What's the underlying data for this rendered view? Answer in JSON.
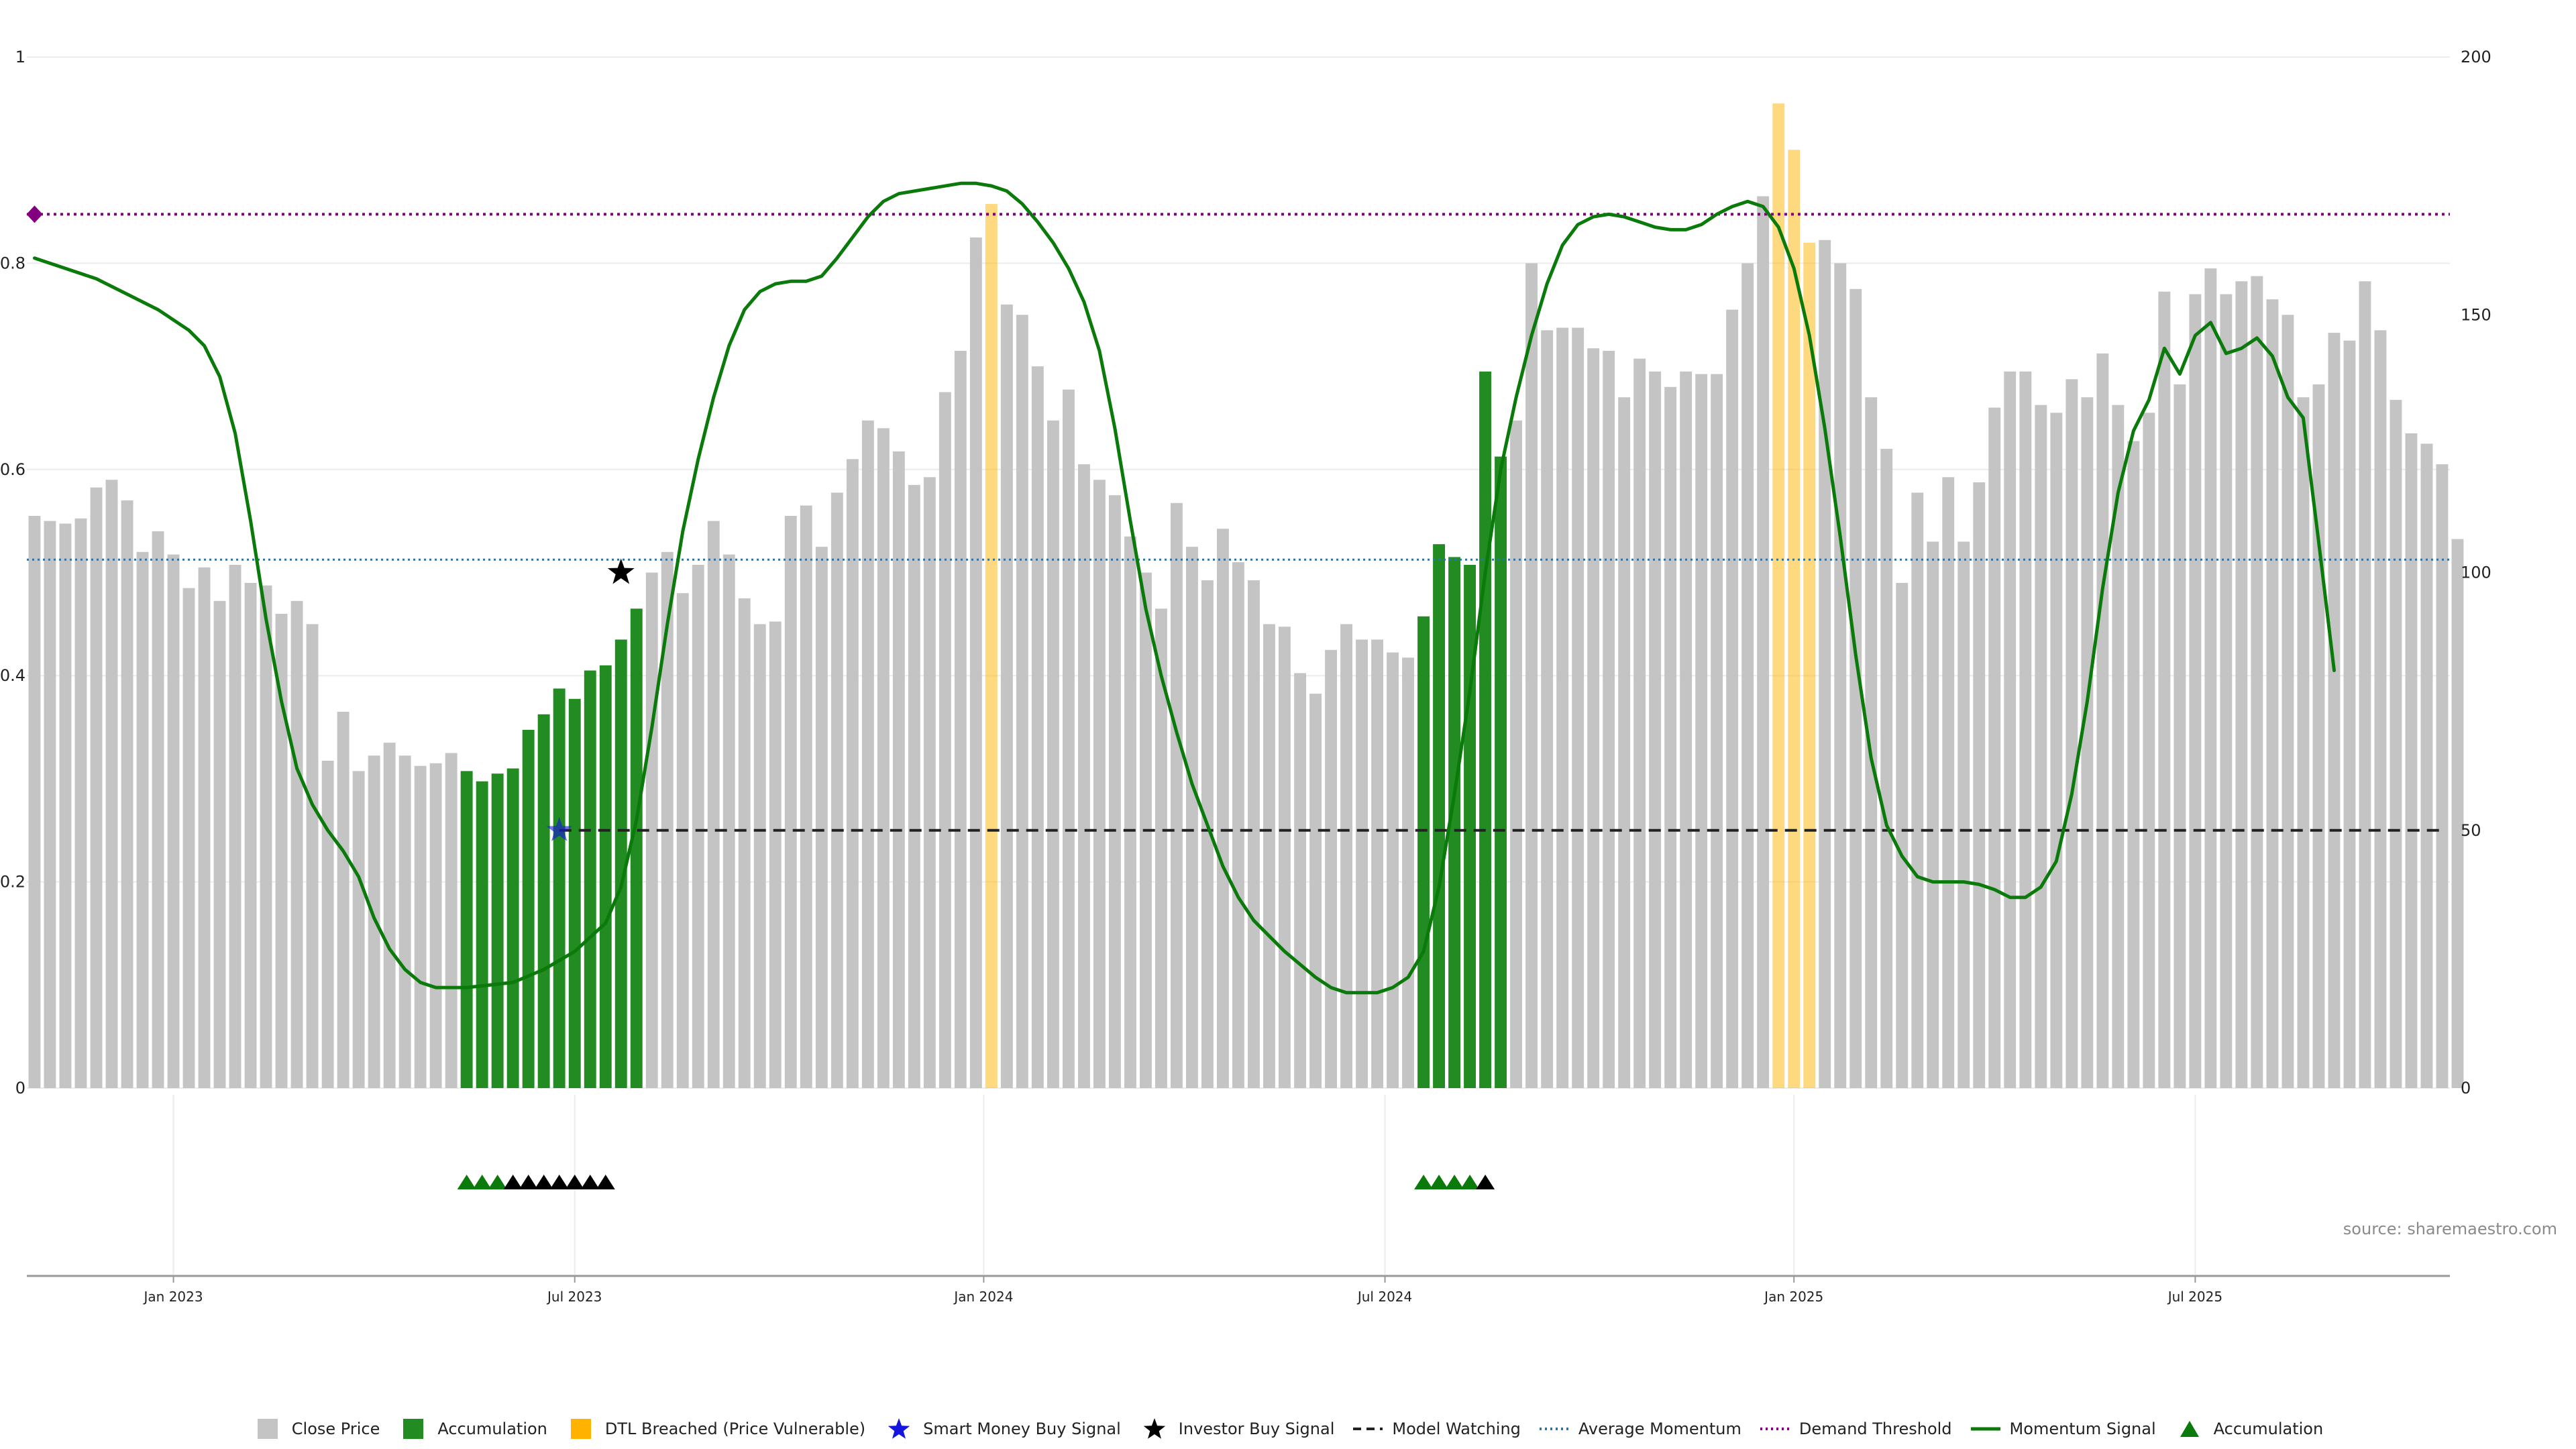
{
  "source_note": "source: sharemaestro.com",
  "legend": [
    {
      "key": "close",
      "label": "Close Price",
      "symbol": "square",
      "color": "#c4c4c4"
    },
    {
      "key": "accum_bar",
      "label": "Accumulation",
      "symbol": "square",
      "color": "#228b22"
    },
    {
      "key": "dtl",
      "label": "DTL Breached (Price Vulnerable)",
      "symbol": "square",
      "color": "#ffb300"
    },
    {
      "key": "smart",
      "label": "Smart Money Buy Signal",
      "symbol": "star",
      "color": "#1515e0"
    },
    {
      "key": "investor",
      "label": "Investor Buy Signal",
      "symbol": "star",
      "color": "#000000"
    },
    {
      "key": "watch",
      "label": "Model Watching",
      "symbol": "dash",
      "color": "#222222"
    },
    {
      "key": "avgmom",
      "label": "Average Momentum",
      "symbol": "dot",
      "color": "#1f77b4"
    },
    {
      "key": "demand",
      "label": "Demand Threshold",
      "symbol": "dot",
      "color": "#800080"
    },
    {
      "key": "momentum",
      "label": "Momentum Signal",
      "symbol": "line",
      "color": "#0a7a0a"
    },
    {
      "key": "accum_tri",
      "label": "Accumulation",
      "symbol": "triangle",
      "color": "#0a7a0a"
    }
  ],
  "chart_data": {
    "type": "bar",
    "left_axis": {
      "ticks": [
        "0",
        "0.2",
        "0.4",
        "0.6",
        "0.8",
        "1"
      ],
      "values": [
        0,
        0.2,
        0.4,
        0.6,
        0.8,
        1.0
      ],
      "ylim": [
        0,
        1
      ]
    },
    "right_axis": {
      "ticks": [
        "0",
        "50",
        "100",
        "150",
        "200"
      ],
      "values": [
        0,
        50,
        100,
        150,
        200
      ],
      "ylim": [
        0,
        200
      ]
    },
    "x_axis": {
      "ticks": [
        {
          "label": "Jan 2023",
          "index": 9
        },
        {
          "label": "Jul 2023",
          "index": 35
        },
        {
          "label": "Jan 2024",
          "index": 61.5
        },
        {
          "label": "Jul 2024",
          "index": 87.5
        },
        {
          "label": "Jan 2025",
          "index": 114
        },
        {
          "label": "Jul 2025",
          "index": 140
        }
      ],
      "xlim": [
        -0.5,
        156.5
      ]
    },
    "grid": true,
    "legend_position": "bottom",
    "close_price": [
      111,
      110,
      109.5,
      110.5,
      116.5,
      118,
      114,
      104,
      108,
      103.5,
      97,
      101,
      94.5,
      101.5,
      98,
      97.5,
      92,
      94.5,
      90,
      63.5,
      73,
      61.5,
      64.5,
      67,
      64.5,
      62.5,
      63,
      65,
      61.5,
      59.5,
      61,
      62,
      69.5,
      72.5,
      77.5,
      75.5,
      81,
      82,
      87,
      93,
      100,
      104,
      96,
      101.5,
      110,
      103.5,
      95,
      90,
      90.5,
      111,
      113,
      105,
      115.5,
      122,
      129.5,
      128,
      123.5,
      117,
      118.5,
      135,
      143,
      165,
      171.5,
      152,
      150,
      140,
      129.5,
      135.5,
      121,
      118,
      115,
      107,
      100,
      93,
      113.5,
      105,
      98.5,
      108.5,
      102,
      98.5,
      90,
      89.5,
      80.5,
      76.5,
      85,
      90,
      87,
      87,
      84.5,
      83.5,
      91.5,
      105.5,
      103,
      101.5,
      139,
      122.5,
      129.5,
      160,
      147,
      147.5,
      147.5,
      143.5,
      143,
      134,
      141.5,
      139,
      136,
      139,
      138.5,
      138.5,
      151,
      160,
      173,
      191,
      182,
      164,
      164.5,
      160,
      155,
      134,
      124,
      98,
      115.5,
      106,
      118.5,
      106,
      117.5,
      132,
      139,
      139,
      132.5,
      131,
      137.5,
      134,
      142.5,
      132.5,
      125.5,
      131,
      154.5,
      136.5,
      154,
      159,
      154,
      156.5,
      157.5,
      153,
      150,
      134,
      136.5,
      146.5,
      145,
      156.5,
      147,
      133.5,
      127,
      125,
      121,
      106.5
    ],
    "accumulation_bars": [
      28,
      29,
      30,
      31,
      32,
      33,
      34,
      35,
      36,
      37,
      38,
      39,
      90,
      91,
      92,
      93,
      94,
      95
    ],
    "dtl_bars": [
      62,
      113,
      114,
      115
    ],
    "momentum": [
      [
        0,
        161
      ],
      [
        2,
        159
      ],
      [
        4,
        157
      ],
      [
        6,
        154
      ],
      [
        8,
        151
      ],
      [
        10,
        147
      ],
      [
        11,
        144
      ],
      [
        12,
        138
      ],
      [
        13,
        127
      ],
      [
        14,
        110
      ],
      [
        15,
        91
      ],
      [
        16,
        75
      ],
      [
        17,
        62
      ],
      [
        18,
        55
      ],
      [
        19,
        50
      ],
      [
        20,
        46
      ],
      [
        21,
        41
      ],
      [
        22,
        33
      ],
      [
        23,
        27
      ],
      [
        24,
        23
      ],
      [
        25,
        20.5
      ],
      [
        26,
        19.5
      ],
      [
        28,
        19.5
      ],
      [
        31,
        20.5
      ],
      [
        33,
        23
      ],
      [
        35,
        26.5
      ],
      [
        37,
        32
      ],
      [
        38,
        39
      ],
      [
        39,
        52
      ],
      [
        40,
        70
      ],
      [
        41,
        90
      ],
      [
        42,
        108
      ],
      [
        43,
        122
      ],
      [
        44,
        134
      ],
      [
        45,
        144
      ],
      [
        46,
        151
      ],
      [
        47,
        154.5
      ],
      [
        48,
        156
      ],
      [
        49,
        156.5
      ],
      [
        50,
        156.5
      ],
      [
        51,
        157.5
      ],
      [
        52,
        161
      ],
      [
        53,
        165
      ],
      [
        54,
        169
      ],
      [
        55,
        172
      ],
      [
        56,
        173.5
      ],
      [
        58,
        174.5
      ],
      [
        60,
        175.5
      ],
      [
        61,
        175.5
      ],
      [
        62,
        175
      ],
      [
        63,
        174
      ],
      [
        64,
        171.5
      ],
      [
        65,
        168
      ],
      [
        66,
        164
      ],
      [
        67,
        159
      ],
      [
        68,
        152.5
      ],
      [
        69,
        143
      ],
      [
        70,
        128
      ],
      [
        71,
        110
      ],
      [
        72,
        93
      ],
      [
        73,
        80
      ],
      [
        74,
        69
      ],
      [
        75,
        59
      ],
      [
        76,
        51
      ],
      [
        77,
        43
      ],
      [
        78,
        37
      ],
      [
        79,
        32.5
      ],
      [
        80,
        29.5
      ],
      [
        81,
        26.5
      ],
      [
        82,
        24
      ],
      [
        83,
        21.5
      ],
      [
        84,
        19.5
      ],
      [
        85,
        18.5
      ],
      [
        86,
        18.5
      ],
      [
        87,
        18.5
      ],
      [
        88,
        19.5
      ],
      [
        89,
        21.5
      ],
      [
        90,
        26.5
      ],
      [
        91,
        39
      ],
      [
        92,
        57
      ],
      [
        93,
        77
      ],
      [
        94,
        100
      ],
      [
        95,
        120
      ],
      [
        96,
        134
      ],
      [
        97,
        146
      ],
      [
        98,
        156
      ],
      [
        99,
        163.5
      ],
      [
        100,
        167.5
      ],
      [
        101,
        169
      ],
      [
        102,
        169.5
      ],
      [
        103,
        169
      ],
      [
        104,
        168
      ],
      [
        105,
        167
      ],
      [
        106,
        166.5
      ],
      [
        107,
        166.5
      ],
      [
        108,
        167.5
      ],
      [
        109,
        169.5
      ],
      [
        110,
        171
      ],
      [
        111,
        172
      ],
      [
        112,
        171
      ],
      [
        113,
        167
      ],
      [
        114,
        159
      ],
      [
        115,
        146
      ],
      [
        116,
        128
      ],
      [
        117,
        107
      ],
      [
        118,
        84
      ],
      [
        119,
        64
      ],
      [
        120,
        51
      ],
      [
        121,
        45
      ],
      [
        122,
        41
      ],
      [
        123,
        40
      ],
      [
        124,
        40
      ],
      [
        125,
        40
      ],
      [
        126,
        39.5
      ],
      [
        127,
        38.5
      ],
      [
        128,
        37
      ],
      [
        129,
        37
      ],
      [
        130,
        39
      ],
      [
        131,
        44
      ],
      [
        132,
        57
      ],
      [
        133,
        75
      ],
      [
        134,
        97
      ],
      [
        135,
        115.5
      ],
      [
        136,
        127.5
      ],
      [
        137,
        133.5
      ],
      [
        138,
        143.5
      ],
      [
        139,
        138.5
      ],
      [
        140,
        146
      ],
      [
        141,
        148.5
      ],
      [
        142,
        142.5
      ],
      [
        143,
        143.5
      ],
      [
        144,
        145.5
      ],
      [
        145,
        142
      ],
      [
        146,
        134
      ],
      [
        147,
        130
      ],
      [
        148,
        106
      ],
      [
        149,
        81
      ]
    ],
    "average_momentum": 102.5,
    "demand_threshold": 169.5,
    "model_watching": {
      "y": 50,
      "from_index": 34,
      "to_index": 156
    },
    "smart_money_buy": [
      {
        "index": 34,
        "value": 50
      }
    ],
    "investor_buy": [
      {
        "index": 38,
        "value": 100
      }
    ],
    "demand_start_marker": {
      "index": 0,
      "value": 169.5
    },
    "accumulation_triangles_green": [
      28,
      29,
      30,
      90,
      91,
      92,
      93
    ],
    "accumulation_triangles_black": [
      31,
      32,
      33,
      34,
      35,
      36,
      37,
      94
    ]
  }
}
